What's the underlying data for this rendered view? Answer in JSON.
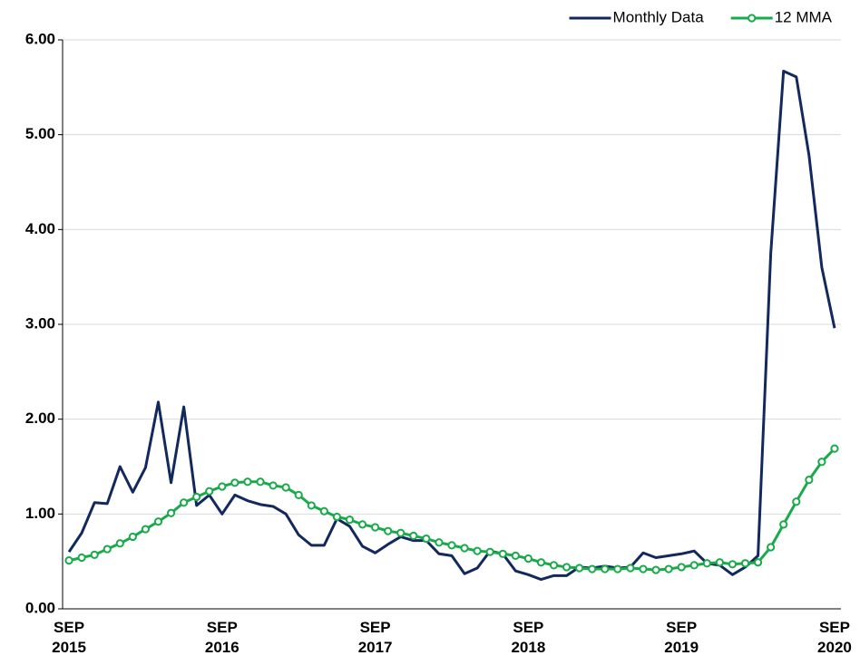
{
  "chart_data": {
    "type": "line",
    "categories": [
      "SEP 2015",
      null,
      null,
      null,
      null,
      null,
      null,
      null,
      null,
      null,
      null,
      null,
      "SEP 2016",
      null,
      null,
      null,
      null,
      null,
      null,
      null,
      null,
      null,
      null,
      null,
      "SEP 2017",
      null,
      null,
      null,
      null,
      null,
      null,
      null,
      null,
      null,
      null,
      null,
      "SEP 2018",
      null,
      null,
      null,
      null,
      null,
      null,
      null,
      null,
      null,
      null,
      null,
      "SEP 2019",
      null,
      null,
      null,
      null,
      null,
      null,
      null,
      null,
      null,
      null,
      null,
      "SEP 2020"
    ],
    "series": [
      {
        "name": "Monthly Data",
        "color": "#13295e",
        "markers": false,
        "values": [
          0.6,
          0.8,
          1.12,
          1.11,
          1.5,
          1.23,
          1.49,
          2.18,
          1.33,
          2.13,
          1.09,
          1.2,
          1.0,
          1.2,
          1.14,
          1.1,
          1.08,
          1.0,
          0.78,
          0.67,
          0.67,
          0.95,
          0.87,
          0.66,
          0.59,
          0.68,
          0.76,
          0.72,
          0.72,
          0.58,
          0.56,
          0.37,
          0.43,
          0.61,
          0.58,
          0.4,
          0.36,
          0.31,
          0.35,
          0.35,
          0.44,
          0.43,
          0.45,
          0.43,
          0.44,
          0.59,
          0.54,
          0.56,
          0.58,
          0.61,
          0.48,
          0.46,
          0.36,
          0.44,
          0.56,
          3.75,
          5.67,
          5.61,
          4.78,
          3.6,
          2.96
        ]
      },
      {
        "name": "12 MMA",
        "color": "#1aaa4b",
        "markers": true,
        "values": [
          0.51,
          0.54,
          0.57,
          0.63,
          0.69,
          0.76,
          0.84,
          0.92,
          1.01,
          1.12,
          1.18,
          1.24,
          1.29,
          1.33,
          1.34,
          1.34,
          1.3,
          1.28,
          1.2,
          1.09,
          1.03,
          0.97,
          0.94,
          0.89,
          0.86,
          0.82,
          0.8,
          0.77,
          0.74,
          0.7,
          0.67,
          0.64,
          0.61,
          0.6,
          0.58,
          0.56,
          0.53,
          0.49,
          0.46,
          0.44,
          0.43,
          0.42,
          0.42,
          0.42,
          0.43,
          0.42,
          0.41,
          0.42,
          0.44,
          0.46,
          0.48,
          0.49,
          0.47,
          0.48,
          0.49,
          0.65,
          0.89,
          1.13,
          1.36,
          1.55,
          1.69
        ]
      }
    ],
    "ylim": [
      0,
      6
    ],
    "yticks": [
      {
        "value": 0,
        "label": "0.00"
      },
      {
        "value": 1,
        "label": "1.00"
      },
      {
        "value": 2,
        "label": "2.00"
      },
      {
        "value": 3,
        "label": "3.00"
      },
      {
        "value": 4,
        "label": "4.00"
      },
      {
        "value": 5,
        "label": "5.00"
      },
      {
        "value": 6,
        "label": "6.00"
      }
    ],
    "grid": true,
    "legend": "top-right"
  }
}
